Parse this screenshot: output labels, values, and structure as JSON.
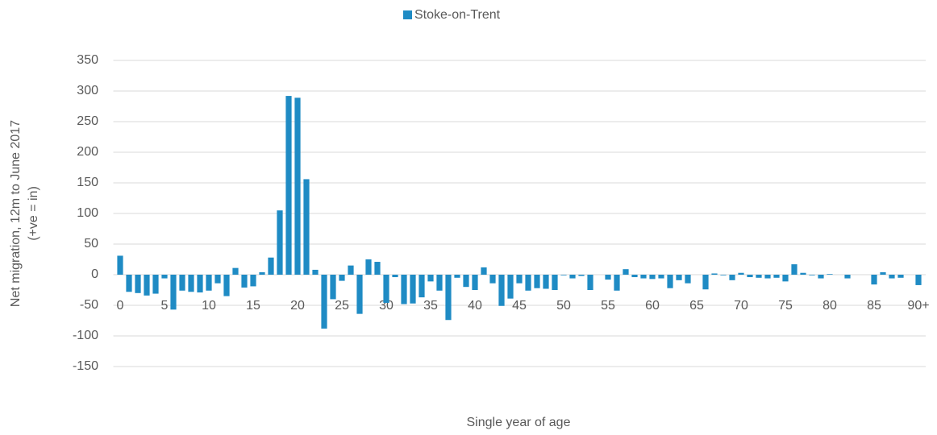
{
  "chart_data": {
    "type": "bar",
    "x_label": "Single year of age",
    "y_label": [
      "Net migration, 12m to June 2017",
      "(+ve = in)"
    ],
    "categories": [
      "0",
      null,
      null,
      null,
      null,
      "5",
      null,
      null,
      null,
      null,
      "10",
      null,
      null,
      null,
      null,
      "15",
      null,
      null,
      null,
      null,
      "20",
      null,
      null,
      null,
      null,
      "25",
      null,
      null,
      null,
      null,
      "30",
      null,
      null,
      null,
      null,
      "35",
      null,
      null,
      null,
      null,
      "40",
      null,
      null,
      null,
      null,
      "45",
      null,
      null,
      null,
      null,
      "50",
      null,
      null,
      null,
      null,
      "55",
      null,
      null,
      null,
      null,
      "60",
      null,
      null,
      null,
      null,
      "65",
      null,
      null,
      null,
      null,
      "70",
      null,
      null,
      null,
      null,
      "75",
      null,
      null,
      null,
      null,
      "80",
      null,
      null,
      null,
      null,
      "85",
      null,
      null,
      null,
      null,
      "90+"
    ],
    "series": [
      {
        "name": "Stoke-on-Trent",
        "color": "#1f8bc4",
        "values": [
          31,
          -28,
          -30,
          -34,
          -31,
          -6,
          -57,
          -26,
          -28,
          -29,
          -26,
          -14,
          -35,
          11,
          -21,
          -19,
          4,
          28,
          105,
          292,
          289,
          156,
          8,
          -88,
          -40,
          -10,
          15,
          -64,
          25,
          21,
          -46,
          -4,
          -48,
          -47,
          -37,
          -11,
          -26,
          -74,
          -5,
          -20,
          -25,
          12,
          -14,
          -51,
          -39,
          -14,
          -26,
          -22,
          -23,
          -25,
          -1,
          -6,
          -2,
          -25,
          0,
          -8,
          -26,
          9,
          -4,
          -6,
          -7,
          -6,
          -22,
          -9,
          -14,
          0,
          -24,
          2,
          -1,
          -9,
          3,
          -4,
          -5,
          -6,
          -5,
          -11,
          17,
          3,
          -1,
          -6,
          1,
          0,
          -6,
          0,
          0,
          -16,
          4,
          -6,
          -5,
          0,
          -17
        ]
      }
    ],
    "ylim": [
      -150,
      350
    ],
    "yticks": [
      -150,
      -100,
      -50,
      0,
      50,
      100,
      150,
      200,
      250,
      300,
      350
    ],
    "grid": true,
    "legend": "top"
  }
}
